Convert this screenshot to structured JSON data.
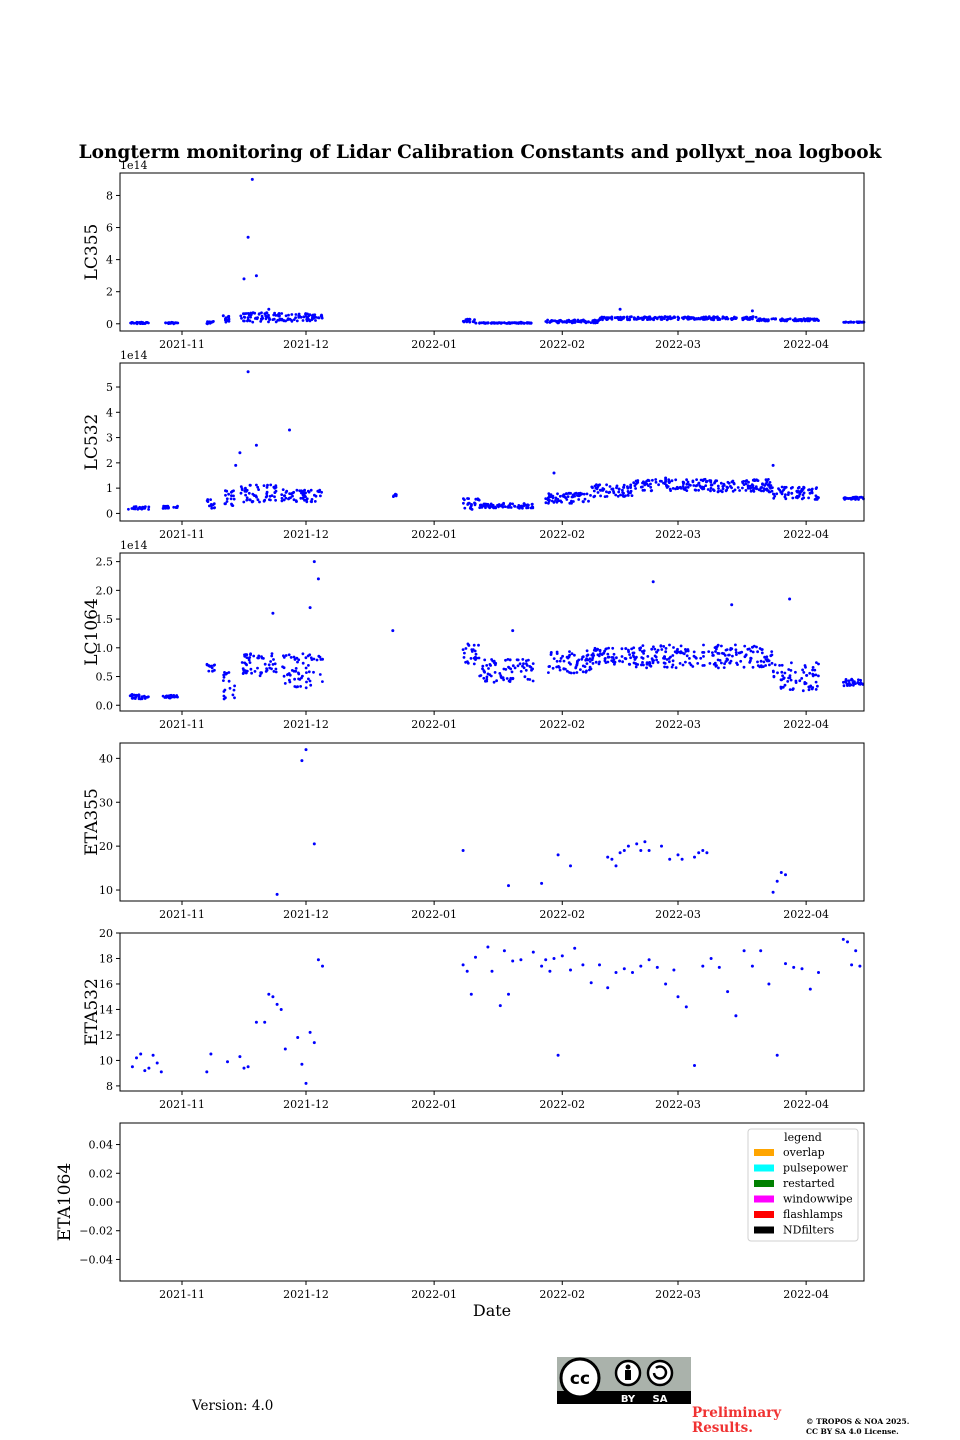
{
  "figure": {
    "title": "Longterm monitoring of Lidar Calibration Constants and pollyxt_noa logbook",
    "version_text": "Version: 4.0",
    "preliminary_text": "Preliminary Results.",
    "copyright_line1": "© TROPOS & NOA 2025.",
    "copyright_line2": "CC BY SA 4.0 License.",
    "license_badge": {
      "icon": "cc-by-sa-icon",
      "labels": [
        "BY",
        "SA"
      ]
    },
    "marker_color": "#0000ff"
  },
  "chart_data": [
    {
      "type": "scatter",
      "ylabel": "LC355",
      "offset_text": "1e14",
      "xlim": [
        "2021-10-17",
        "2022-04-15"
      ],
      "ylim": [
        -0.45,
        9.4
      ],
      "yticks": [
        0,
        2,
        4,
        6,
        8
      ],
      "ytick_labels": [
        "0",
        "2",
        "4",
        "6",
        "8"
      ],
      "xticks": [
        "2021-11",
        "2021-12",
        "2022-01",
        "2022-02",
        "2022-03",
        "2022-04"
      ],
      "x": [
        "2021-11-16",
        "2021-11-17",
        "2021-11-18",
        "2021-11-19",
        "2021-11-11",
        "2021-11-22",
        "2022-01-22",
        "2022-02-15",
        "2022-03-19"
      ],
      "y": [
        2.8,
        5.4,
        9.0,
        3.0,
        0.5,
        0.9,
        0.1,
        0.9,
        0.8
      ]
    },
    {
      "type": "scatter",
      "ylabel": "LC532",
      "offset_text": "1e14",
      "xlim": [
        "2021-10-17",
        "2022-04-15"
      ],
      "ylim": [
        -0.3,
        5.95
      ],
      "yticks": [
        0,
        1,
        2,
        3,
        4,
        5
      ],
      "ytick_labels": [
        "0",
        "1",
        "2",
        "3",
        "4",
        "5"
      ],
      "xticks": [
        "2021-11",
        "2021-12",
        "2022-01",
        "2022-02",
        "2022-03",
        "2022-04"
      ],
      "x": [
        "2021-11-19",
        "2021-11-27",
        "2021-11-17",
        "2021-11-14",
        "2021-11-15",
        "2022-01-30",
        "2022-02-26",
        "2022-03-24"
      ],
      "y": [
        2.7,
        3.3,
        5.6,
        1.9,
        2.4,
        1.6,
        1.4,
        1.9
      ]
    },
    {
      "type": "scatter",
      "ylabel": "LC1064",
      "offset_text": "1e14",
      "xlim": [
        "2021-10-17",
        "2022-04-15"
      ],
      "ylim": [
        -0.1,
        2.65
      ],
      "yticks": [
        0.0,
        0.5,
        1.0,
        1.5,
        2.0,
        2.5
      ],
      "ytick_labels": [
        "0.0",
        "0.5",
        "1.0",
        "1.5",
        "2.0",
        "2.5"
      ],
      "xticks": [
        "2021-11",
        "2021-12",
        "2022-01",
        "2022-02",
        "2022-03",
        "2022-04"
      ],
      "x": [
        "2021-12-03",
        "2021-12-04",
        "2021-12-02",
        "2021-11-23",
        "2022-02-23",
        "2022-03-14",
        "2022-03-28",
        "2022-01-20",
        "2021-12-22",
        "2021-12-05"
      ],
      "y": [
        2.5,
        2.2,
        1.7,
        1.6,
        2.15,
        1.75,
        1.85,
        1.3,
        1.3,
        0.8
      ]
    },
    {
      "type": "scatter",
      "ylabel": "ETA355",
      "xlim": [
        "2021-10-17",
        "2022-04-15"
      ],
      "ylim": [
        7.5,
        43.5
      ],
      "yticks": [
        10,
        20,
        30,
        40
      ],
      "ytick_labels": [
        "10",
        "20",
        "30",
        "40"
      ],
      "xticks": [
        "2021-11",
        "2021-12",
        "2022-01",
        "2022-02",
        "2022-03",
        "2022-04"
      ],
      "x": [
        "2021-11-24",
        "2021-11-30",
        "2021-12-01",
        "2021-12-03",
        "2022-01-08",
        "2022-01-19",
        "2022-01-27",
        "2022-01-31",
        "2022-02-03",
        "2022-02-12",
        "2022-02-13",
        "2022-02-14",
        "2022-02-15",
        "2022-02-16",
        "2022-02-17",
        "2022-02-19",
        "2022-02-20",
        "2022-02-21",
        "2022-02-22",
        "2022-02-25",
        "2022-02-27",
        "2022-03-01",
        "2022-03-02",
        "2022-03-05",
        "2022-03-06",
        "2022-03-07",
        "2022-03-08",
        "2022-03-24",
        "2022-03-25",
        "2022-03-26",
        "2022-03-27"
      ],
      "y": [
        9,
        39.5,
        42,
        20.5,
        19,
        11,
        11.5,
        18,
        15.5,
        17.5,
        17,
        15.5,
        18.5,
        19,
        20,
        20.5,
        19,
        21,
        19,
        20,
        17,
        18,
        17,
        17.5,
        18.5,
        19,
        18.5,
        9.5,
        12,
        14,
        13.5
      ]
    },
    {
      "type": "scatter",
      "ylabel": "ETA532",
      "xlim": [
        "2021-10-17",
        "2022-04-15"
      ],
      "ylim": [
        7.6,
        20.0
      ],
      "yticks": [
        8,
        10,
        12,
        14,
        16,
        18,
        20
      ],
      "ytick_labels": [
        "8",
        "10",
        "12",
        "14",
        "16",
        "18",
        "20"
      ],
      "xticks": [
        "2021-11",
        "2021-12",
        "2022-01",
        "2022-02",
        "2022-03",
        "2022-04"
      ],
      "x": [
        "2021-10-20",
        "2021-10-21",
        "2021-10-22",
        "2021-10-23",
        "2021-10-24",
        "2021-10-25",
        "2021-10-26",
        "2021-10-27",
        "2021-11-07",
        "2021-11-08",
        "2021-11-12",
        "2021-11-15",
        "2021-11-16",
        "2021-11-17",
        "2021-11-19",
        "2021-11-21",
        "2021-11-22",
        "2021-11-23",
        "2021-11-24",
        "2021-11-25",
        "2021-11-26",
        "2021-11-29",
        "2021-11-30",
        "2021-12-01",
        "2021-12-02",
        "2021-12-03",
        "2021-12-04",
        "2021-12-05",
        "2022-01-08",
        "2022-01-09",
        "2022-01-10",
        "2022-01-11",
        "2022-01-14",
        "2022-01-15",
        "2022-01-17",
        "2022-01-18",
        "2022-01-19",
        "2022-01-20",
        "2022-01-22",
        "2022-01-25",
        "2022-01-27",
        "2022-01-28",
        "2022-01-29",
        "2022-01-30",
        "2022-01-31",
        "2022-02-01",
        "2022-02-03",
        "2022-02-04",
        "2022-02-06",
        "2022-02-08",
        "2022-02-10",
        "2022-02-12",
        "2022-02-14",
        "2022-02-16",
        "2022-02-18",
        "2022-02-20",
        "2022-02-22",
        "2022-02-24",
        "2022-02-26",
        "2022-02-28",
        "2022-03-01",
        "2022-03-03",
        "2022-03-05",
        "2022-03-07",
        "2022-03-09",
        "2022-03-11",
        "2022-03-13",
        "2022-03-15",
        "2022-03-17",
        "2022-03-19",
        "2022-03-21",
        "2022-03-23",
        "2022-03-25",
        "2022-03-27",
        "2022-03-29",
        "2022-03-31",
        "2022-04-02",
        "2022-04-04",
        "2022-04-10",
        "2022-04-11",
        "2022-04-12",
        "2022-04-13",
        "2022-04-14"
      ],
      "y": [
        9.5,
        10.2,
        10.5,
        9.2,
        9.4,
        10.4,
        9.8,
        9.1,
        9.1,
        10.5,
        9.9,
        10.3,
        9.4,
        9.5,
        13.0,
        13.0,
        15.2,
        15.0,
        14.4,
        14.0,
        10.9,
        11.8,
        9.7,
        8.2,
        12.2,
        11.4,
        17.9,
        17.4,
        17.5,
        17.0,
        15.2,
        18.1,
        18.9,
        17.0,
        14.3,
        18.6,
        15.2,
        17.8,
        17.9,
        18.5,
        17.4,
        17.9,
        17.0,
        18.0,
        10.4,
        18.2,
        17.1,
        18.8,
        17.5,
        16.1,
        17.5,
        15.7,
        16.9,
        17.2,
        16.9,
        17.4,
        17.9,
        17.3,
        16.0,
        17.1,
        15.0,
        14.2,
        9.6,
        17.4,
        18.0,
        17.3,
        15.4,
        13.5,
        18.6,
        17.4,
        18.6,
        16.0,
        10.4,
        17.6,
        17.3,
        17.2,
        15.6,
        16.9,
        19.5,
        19.3,
        17.5,
        18.6,
        17.4
      ]
    },
    {
      "type": "scatter",
      "ylabel": "ETA1064",
      "xlabel": "Date",
      "xlim": [
        "2021-10-17",
        "2022-04-15"
      ],
      "ylim": [
        -0.055,
        0.055
      ],
      "yticks": [
        -0.04,
        -0.02,
        0.0,
        0.02,
        0.04
      ],
      "ytick_labels": [
        "−0.04",
        "−0.02",
        "0.00",
        "0.02",
        "0.04"
      ],
      "xticks": [
        "2021-11",
        "2021-12",
        "2022-01",
        "2022-02",
        "2022-03",
        "2022-04"
      ],
      "x": [],
      "y": [],
      "legend": {
        "title": "legend",
        "position": "upper right",
        "entries": [
          {
            "label": "overlap",
            "color": "#ffa500"
          },
          {
            "label": "pulsepower",
            "color": "#00ffff"
          },
          {
            "label": "restarted",
            "color": "#008000"
          },
          {
            "label": "windowwipe",
            "color": "#ff00ff"
          },
          {
            "label": "flashlamps",
            "color": "#ff0000"
          },
          {
            "label": "NDfilters",
            "color": "#000000"
          }
        ]
      }
    }
  ]
}
